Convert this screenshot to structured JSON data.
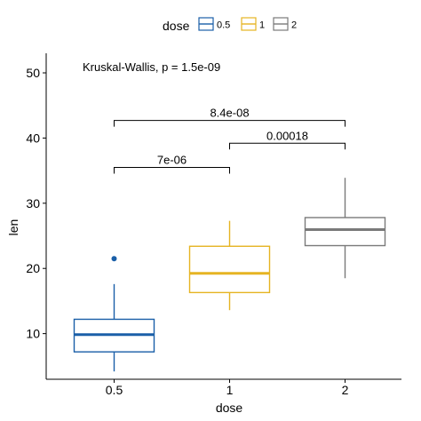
{
  "chart_data": {
    "type": "box",
    "xlabel": "dose",
    "ylabel": "len",
    "ylim": [
      3,
      53
    ],
    "yticks": [
      10,
      20,
      30,
      40,
      50
    ],
    "categories": [
      "0.5",
      "1",
      "2"
    ],
    "legend": {
      "title": "dose",
      "position": "top",
      "entries": [
        "0.5",
        "1",
        "2"
      ]
    },
    "series": [
      {
        "category": "0.5",
        "color": "#1a5fa8",
        "min": 4.2,
        "q1": 7.2,
        "median": 9.85,
        "q3": 12.2,
        "max": 17.6,
        "outliers": [
          21.5
        ]
      },
      {
        "category": "1",
        "color": "#e6b422",
        "min": 13.6,
        "q1": 16.3,
        "median": 19.25,
        "q3": 23.4,
        "max": 27.3,
        "outliers": []
      },
      {
        "category": "2",
        "color": "#7a7a7a",
        "min": 18.5,
        "q1": 23.5,
        "median": 25.95,
        "q3": 27.8,
        "max": 33.9,
        "outliers": []
      }
    ],
    "annotation": "Kruskal-Wallis, p = 1.5e-09",
    "comparisons": [
      {
        "from": "0.5",
        "to": "1",
        "label": "7e-06",
        "y": 35.5
      },
      {
        "from": "1",
        "to": "2",
        "label": "0.00018",
        "y": 39.2
      },
      {
        "from": "0.5",
        "to": "2",
        "label": "8.4e-08",
        "y": 42.7
      }
    ],
    "grid": false
  }
}
